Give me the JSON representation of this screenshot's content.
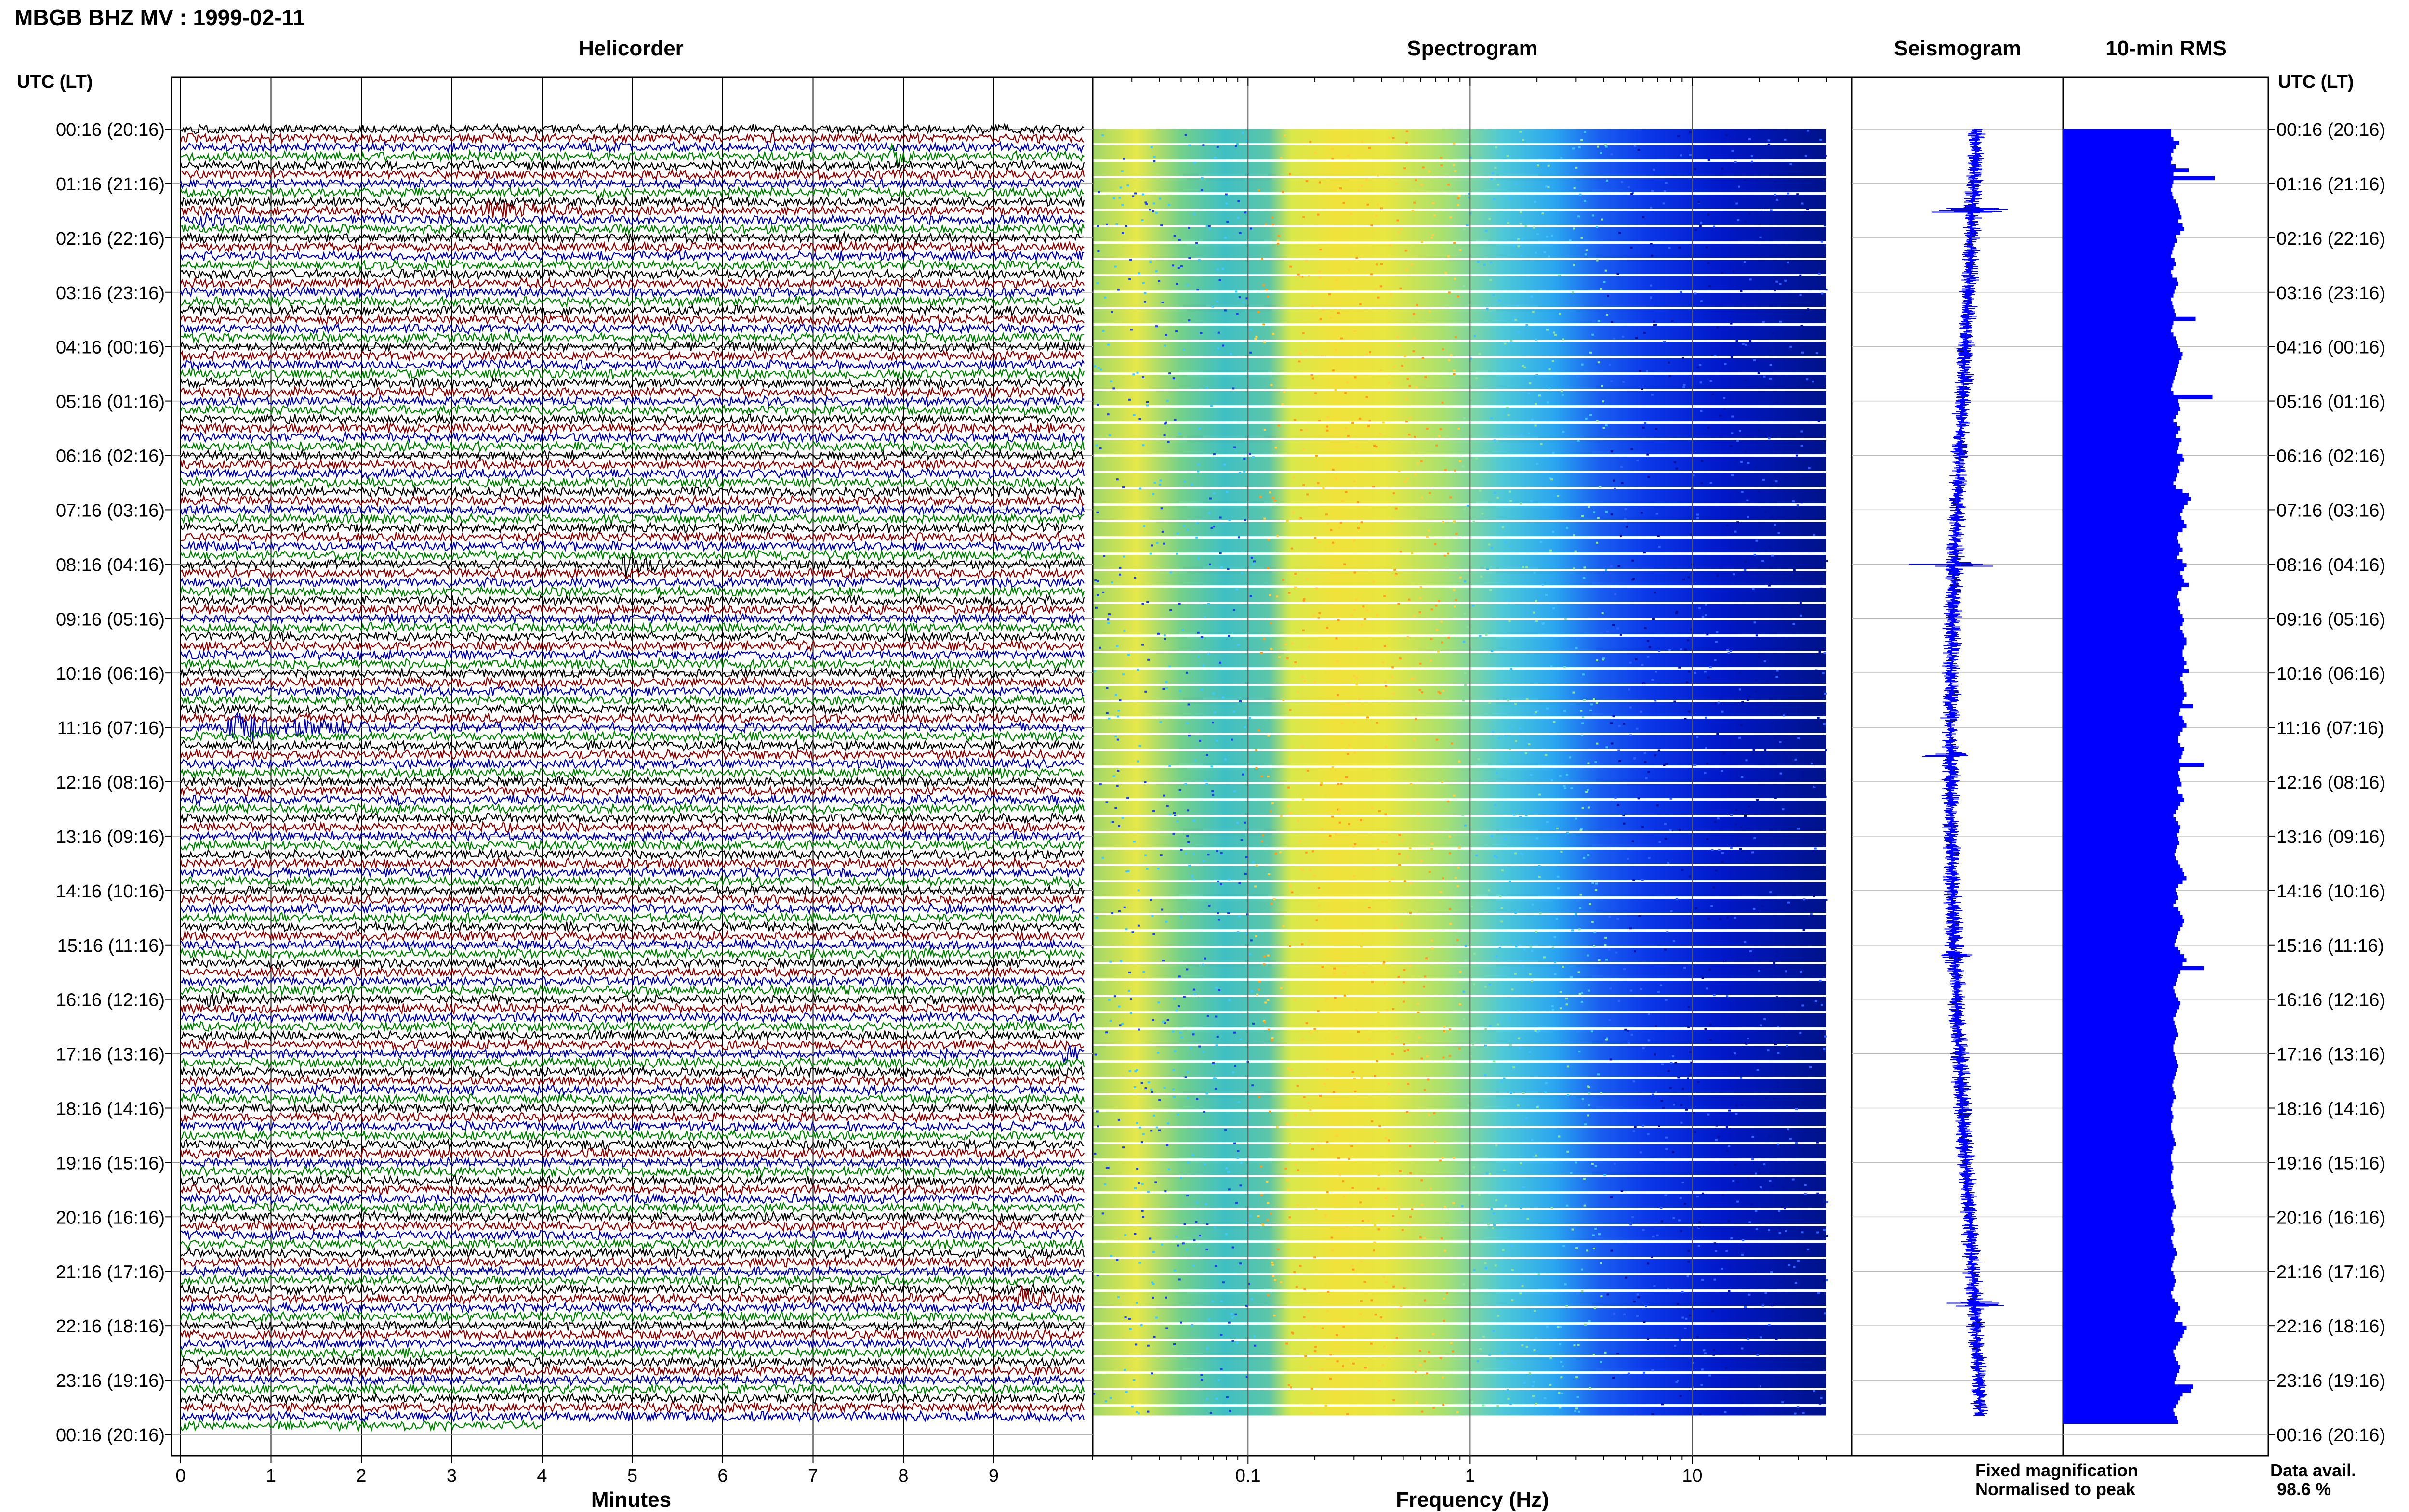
{
  "header": {
    "title": "MBGB BHZ MV : 1999-02-11"
  },
  "panels": {
    "helicorder": "Helicorder",
    "spectrogram": "Spectrogram",
    "seismogram": "Seismogram",
    "rms": "10-min RMS"
  },
  "axis": {
    "time_header_left": "UTC (LT)",
    "time_header_right": "UTC (LT)",
    "time_labels": [
      "00:16 (20:16)",
      "01:16 (21:16)",
      "02:16 (22:16)",
      "03:16 (23:16)",
      "04:16 (00:16)",
      "05:16 (01:16)",
      "06:16 (02:16)",
      "07:16 (03:16)",
      "08:16 (04:16)",
      "09:16 (05:16)",
      "10:16 (06:16)",
      "11:16 (07:16)",
      "12:16 (08:16)",
      "13:16 (09:16)",
      "14:16 (10:16)",
      "15:16 (11:16)",
      "16:16 (12:16)",
      "17:16 (13:16)",
      "18:16 (14:16)",
      "19:16 (15:16)",
      "20:16 (16:16)",
      "21:16 (17:16)",
      "22:16 (18:16)",
      "23:16 (19:16)",
      "00:16 (20:16)"
    ],
    "minutes_label": "Minutes",
    "minute_ticks": [
      "0",
      "1",
      "2",
      "3",
      "4",
      "5",
      "6",
      "7",
      "8",
      "9"
    ],
    "frequency_label": "Frequency (Hz)",
    "frequency_ticks": [
      "0.1",
      "1",
      "10"
    ]
  },
  "legend": {
    "fixed": "Fixed magnification",
    "normalised": "Normalised to peak",
    "fixed_color": "#0000ff",
    "normalised_color": "#ff0000"
  },
  "availability": {
    "label": "Data avail.",
    "value": "98.6 %"
  },
  "colors": {
    "trace_cycle": [
      "#000000",
      "#8b0000",
      "#0000aa",
      "#008000"
    ],
    "rms_bar": "#0000ff",
    "seismogram": "#0000ff"
  },
  "chart_data": [
    {
      "type": "line",
      "name": "helicorder",
      "xlabel": "Minutes",
      "xlim": [
        0,
        10
      ],
      "rows_per_hour": 6,
      "row_minutes": 10,
      "events": [
        {
          "hour": 0.5,
          "minute": 7.9,
          "amplitude": 1.6,
          "duration": 0.3
        },
        {
          "hour": 1.5,
          "minute": 3.4,
          "amplitude": 2.8,
          "duration": 0.9
        },
        {
          "hour": 1.67,
          "minute": 0.2,
          "amplitude": 1.6,
          "duration": 0.5
        },
        {
          "hour": 8.0,
          "minute": 4.9,
          "amplitude": 2.6,
          "duration": 0.6
        },
        {
          "hour": 11.0,
          "minute": 0.5,
          "amplitude": 3.0,
          "duration": 1.9
        },
        {
          "hour": 16.0,
          "minute": 0.35,
          "amplitude": 1.6,
          "duration": 0.3
        },
        {
          "hour": 17.0,
          "minute": 9.8,
          "amplitude": 1.5,
          "duration": 0.2
        },
        {
          "hour": 21.5,
          "minute": 9.3,
          "amplitude": 2.6,
          "duration": 0.7
        }
      ]
    },
    {
      "type": "heatmap",
      "name": "spectrogram",
      "xlabel": "Frequency (Hz)",
      "xscale": "log",
      "xlim": [
        0.02,
        40
      ]
    },
    {
      "type": "line",
      "name": "seismogram",
      "spikes": [
        {
          "hour": 1.5,
          "amplitude": 4.5
        },
        {
          "hour": 8.0,
          "amplitude": 4.5
        },
        {
          "hour": 11.5,
          "amplitude": 3.0
        },
        {
          "hour": 15.2,
          "amplitude": 2.0
        },
        {
          "hour": 21.6,
          "amplitude": 3.5
        }
      ]
    },
    {
      "type": "bar",
      "name": "10-min RMS",
      "ylim": [
        0,
        24
      ],
      "values": [
        1.0,
        1.0,
        1.02,
        1.07,
        1.04,
        1.02,
        1.0,
        1.01,
        1.0,
        1.04,
        1.16,
        1.02,
        1.4,
        1.02,
        1.01,
        1.0,
        1.01,
        1.02,
        1.04,
        1.06,
        1.07,
        1.08,
        1.09,
        1.06,
        1.1,
        1.12,
        1.08,
        1.04,
        1.05,
        1.03,
        1.02,
        1.01,
        1.0,
        1.03,
        1.04,
        1.02,
        1.0,
        1.01,
        1.05,
        1.06,
        1.04,
        1.03,
        1.02,
        1.0,
        1.01,
        1.02,
        1.03,
        1.04,
        1.22,
        1.02,
        1.01,
        1.0,
        1.02,
        1.04,
        1.05,
        1.06,
        1.08,
        1.1,
        1.09,
        1.07,
        1.06,
        1.05,
        1.04,
        1.03,
        1.02,
        1.01,
        1.0,
        1.02,
        1.38,
        1.06,
        1.07,
        1.08,
        1.06,
        1.04,
        1.02,
        1.05,
        1.08,
        1.06,
        1.04,
        1.09,
        1.07,
        1.06,
        1.05,
        1.1,
        1.12,
        1.08,
        1.06,
        1.07,
        1.05,
        1.04,
        1.02,
        1.04,
        1.1,
        1.16,
        1.18,
        1.15,
        1.12,
        1.1,
        1.08,
        1.09,
        1.12,
        1.14,
        1.1,
        1.06,
        1.05,
        1.06,
        1.08,
        1.1,
        1.07,
        1.05,
        1.1,
        1.14,
        1.12,
        1.08,
        1.1,
        1.12,
        1.16,
        1.09,
        1.06,
        1.05,
        1.07,
        1.08,
        1.06,
        1.08,
        1.1,
        1.12,
        1.1,
        1.08,
        1.1,
        1.12,
        1.14,
        1.14,
        1.12,
        1.1,
        1.1,
        1.12,
        1.14,
        1.12,
        1.16,
        1.1,
        1.08,
        1.1,
        1.11,
        1.12,
        1.14,
        1.12,
        1.1,
        1.2,
        1.08,
        1.07,
        1.1,
        1.12,
        1.14,
        1.1,
        1.08,
        1.06,
        1.06,
        1.08,
        1.12,
        1.1,
        1.09,
        1.07,
        1.3,
        1.08,
        1.06,
        1.07,
        1.08,
        1.09,
        1.05,
        1.06,
        1.1,
        1.12,
        1.08,
        1.06,
        1.04,
        1.02,
        1.04,
        1.06,
        1.08,
        1.07,
        1.05,
        1.06,
        1.07,
        1.05,
        1.04,
        1.03,
        1.04,
        1.06,
        1.08,
        1.1,
        1.12,
        1.14,
        1.1,
        1.06,
        1.04,
        1.05,
        1.06,
        1.04,
        1.02,
        1.06,
        1.08,
        1.1,
        1.12,
        1.1,
        1.08,
        1.06,
        1.05,
        1.04,
        1.03,
        1.06,
        1.08,
        1.12,
        1.14,
        1.1,
        1.3,
        1.08,
        1.06,
        1.05,
        1.04,
        1.02,
        1.03,
        1.04,
        1.06,
        1.08,
        1.07,
        1.05,
        1.04,
        1.02,
        1.03,
        1.04,
        1.05,
        1.06,
        1.04,
        1.03,
        1.02,
        1.02,
        1.03,
        1.04,
        1.05,
        1.06,
        1.05,
        1.04,
        1.03,
        1.02,
        1.01,
        1.02,
        1.03,
        1.04,
        1.02,
        1.01,
        1.0,
        1.01,
        1.02,
        1.01,
        1.0,
        1.0,
        1.01,
        1.02,
        1.03,
        1.04,
        1.02,
        1.01,
        1.0,
        1.0,
        1.01,
        1.02,
        1.01,
        1.0,
        1.0,
        1.01,
        1.02,
        1.0,
        1.01,
        1.02,
        1.03,
        1.04,
        1.02,
        1.01,
        1.0,
        1.01,
        1.02,
        1.03,
        1.02,
        1.0,
        1.01,
        1.02,
        1.04,
        1.05,
        1.03,
        1.02,
        1.01,
        1.0,
        1.02,
        1.03,
        1.04,
        1.03,
        1.02,
        1.0,
        1.01,
        1.03,
        1.06,
        1.08,
        1.06,
        1.04,
        1.03,
        1.1,
        1.14,
        1.12,
        1.1,
        1.08,
        1.06,
        1.04,
        1.02,
        1.03,
        1.04,
        1.06,
        1.08,
        1.07,
        1.05,
        1.04,
        1.03,
        1.2,
        1.18,
        1.1,
        1.08,
        1.06,
        1.04,
        1.02,
        1.03,
        1.05,
        1.06
      ]
    }
  ]
}
